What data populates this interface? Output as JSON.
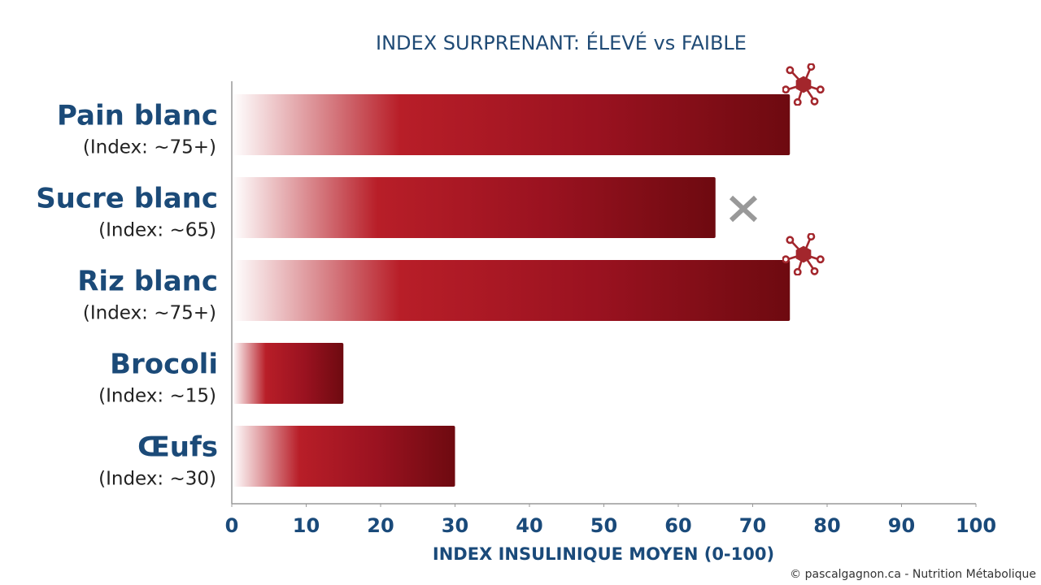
{
  "chart_data": {
    "type": "bar",
    "orientation": "horizontal",
    "title": "INDEX SURPRENANT: ÉLEVÉ vs FAIBLE",
    "x_label": "INDEX INSULINIQUE MOYEN (0-100)",
    "categories": [
      "Pain blanc",
      "Sucre blanc",
      "Riz blanc",
      "Brocoli",
      "Œufs"
    ],
    "values": [
      75,
      65,
      75,
      15,
      30
    ],
    "value_labels": [
      "(Index: ~75+)",
      "(Index: ~65)",
      "(Index: ~75+)",
      "(Index: ~15)",
      "(Index: ~30)"
    ],
    "color": "#6e0a10",
    "xlim": [
      0,
      100
    ],
    "xticks": [
      0,
      10,
      20,
      30,
      40,
      50,
      60,
      70,
      80,
      90,
      100
    ]
  },
  "footer": "© pascalgagnon.ca - Nutrition Métabolique"
}
